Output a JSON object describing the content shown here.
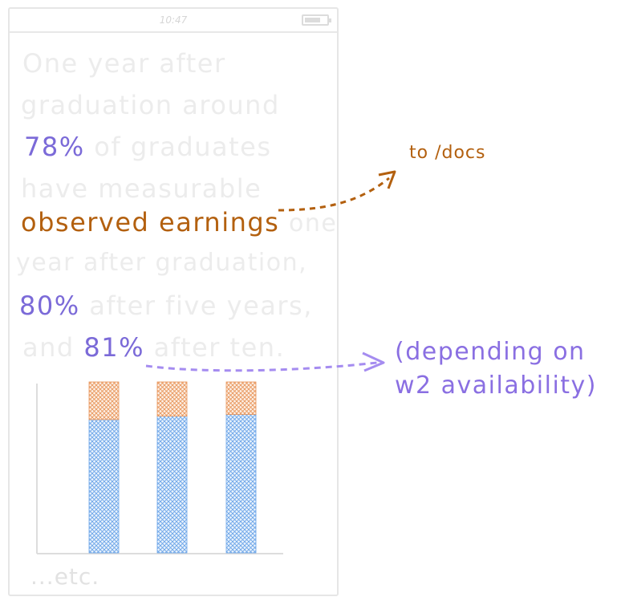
{
  "status_bar": {
    "time": "10:47"
  },
  "text": {
    "line1": "One year after",
    "line2": "graduation around",
    "pct1": "78%",
    "line3_rest": "of graduates",
    "line4": "have measurable",
    "observed": "observed earnings",
    "line5_rest": "one",
    "line6": "year after graduation,",
    "pct2": "80%",
    "line7_rest": "after five years,",
    "line8_start": "and",
    "pct3": "81%",
    "line8_rest": "after ten.",
    "etc": "...etc."
  },
  "annotations": {
    "docs": "to /docs",
    "w2_line1": "(depending on",
    "w2_line2": "w2 availability)"
  },
  "colors": {
    "earnings": "#b3600f",
    "percent": "#7b6ad8",
    "w2_arrow": "#a58cf0",
    "bar_blue": "#6aa4e8",
    "bar_orange": "#e8955a"
  },
  "chart_data": {
    "type": "bar",
    "stacked": true,
    "categories": [
      "",
      "",
      ""
    ],
    "series": [
      {
        "values": [
          78,
          80,
          81
        ],
        "color": "#6aa4e8"
      },
      {
        "values": [
          22,
          20,
          19
        ],
        "color": "#e8955a"
      }
    ],
    "ylim": [
      0,
      100
    ],
    "grid": false
  }
}
